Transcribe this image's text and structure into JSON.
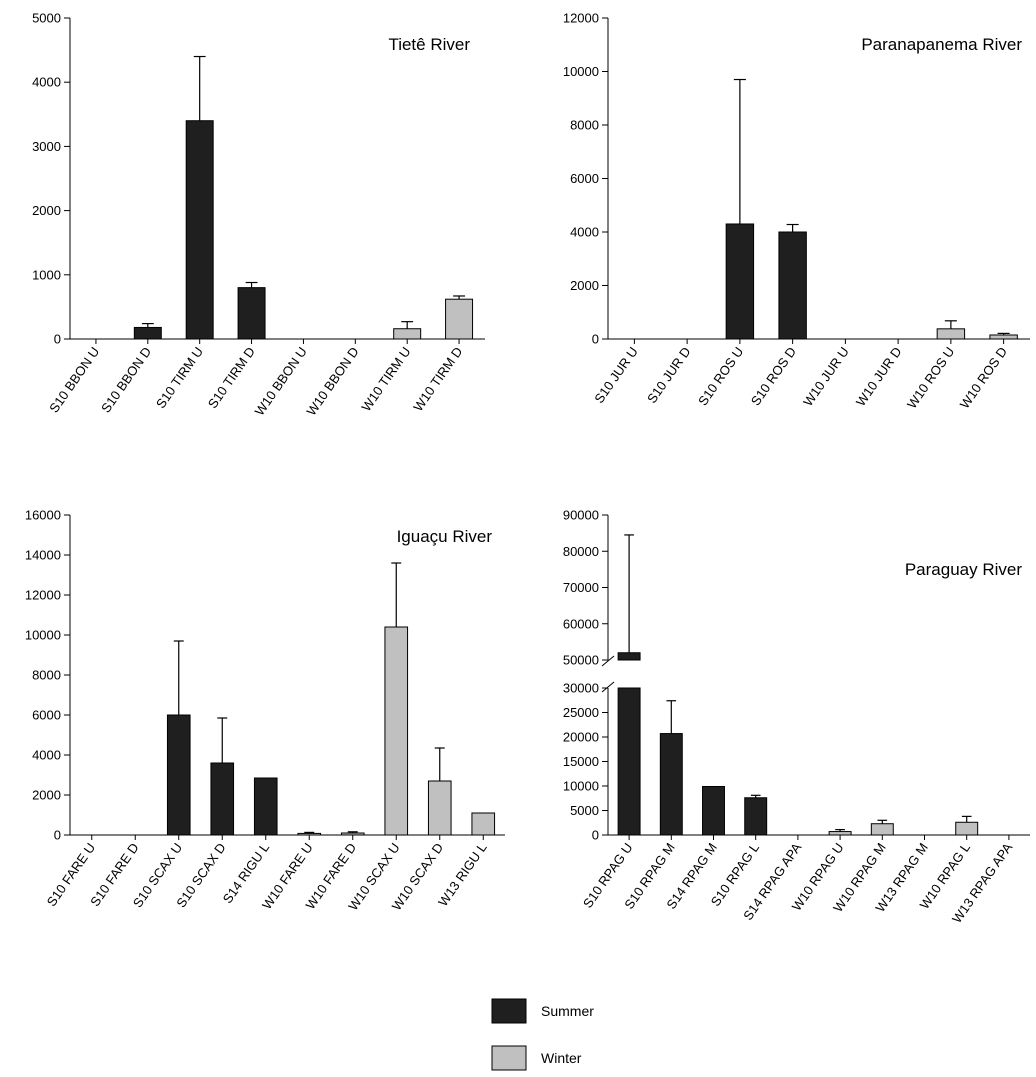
{
  "colors": {
    "summer": "#1f1f1f",
    "winter": "#c0c0c0",
    "axis": "#000000"
  },
  "legend": [
    {
      "key": "summer",
      "label": "Summer"
    },
    {
      "key": "winter",
      "label": "Winter"
    }
  ],
  "chart_data": [
    {
      "type": "bar",
      "title": "Tietê River",
      "xlabel": "",
      "ylabel": "",
      "ylim": [
        0,
        5000
      ],
      "yticks": [
        0,
        1000,
        2000,
        3000,
        4000,
        5000
      ],
      "categories": [
        "S10 BBON U",
        "S10 BBON D",
        "S10 TIRM U",
        "S10 TIRM D",
        "W10 BBON U",
        "W10 BBON D",
        "W10 TIRM U",
        "W10 TIRM D"
      ],
      "values": [
        0,
        180,
        3400,
        800,
        0,
        0,
        160,
        620
      ],
      "errors": [
        0,
        60,
        1000,
        80,
        0,
        0,
        110,
        50
      ],
      "season": [
        "summer",
        "summer",
        "summer",
        "summer",
        "winter",
        "winter",
        "winter",
        "winter"
      ]
    },
    {
      "type": "bar",
      "title": "Paranapanema River",
      "xlabel": "",
      "ylabel": "",
      "ylim": [
        0,
        12000
      ],
      "yticks": [
        0,
        2000,
        4000,
        6000,
        8000,
        10000,
        12000
      ],
      "categories": [
        "S10 JUR U",
        "S10 JUR D",
        "S10 ROS U",
        "S10 ROS D",
        "W10 JUR U",
        "W10 JUR D",
        "W10 ROS U",
        "W10 ROS D"
      ],
      "values": [
        0,
        0,
        4300,
        4000,
        0,
        0,
        380,
        150
      ],
      "errors": [
        0,
        0,
        5400,
        280,
        0,
        0,
        300,
        60
      ],
      "season": [
        "summer",
        "summer",
        "summer",
        "summer",
        "winter",
        "winter",
        "winter",
        "winter"
      ]
    },
    {
      "type": "bar",
      "title": "Iguaçu River",
      "xlabel": "",
      "ylabel": "",
      "ylim": [
        0,
        16000
      ],
      "yticks": [
        0,
        2000,
        4000,
        6000,
        8000,
        10000,
        12000,
        14000,
        16000
      ],
      "categories": [
        "S10 FARE U",
        "S10 FARE D",
        "S10 SCAX U",
        "S10 SCAX D",
        "S14 RIGU L",
        "W10 FARE U",
        "W10 FARE D",
        "W10 SCAX U",
        "W10 SCAX D",
        "W13 RIGU L"
      ],
      "values": [
        0,
        0,
        6000,
        3600,
        2850,
        80,
        100,
        10400,
        2700,
        1100
      ],
      "errors": [
        0,
        0,
        3700,
        2250,
        0,
        50,
        60,
        3200,
        1650,
        0
      ],
      "season": [
        "summer",
        "summer",
        "summer",
        "summer",
        "summer",
        "winter",
        "winter",
        "winter",
        "winter",
        "winter"
      ]
    },
    {
      "type": "bar",
      "title": "Paraguay River",
      "xlabel": "",
      "ylabel": "",
      "ylim": [
        0,
        90000
      ],
      "axis_break": [
        30000,
        50000
      ],
      "yticks": [
        0,
        5000,
        10000,
        15000,
        20000,
        25000,
        30000,
        50000,
        60000,
        70000,
        80000,
        90000
      ],
      "categories": [
        "S10 RPAG U",
        "S10 RPAG M",
        "S14 RPAG M",
        "S10 RPAG L",
        "S14 RPAG APA",
        "W10 RPAG U",
        "W10 RPAG M",
        "W13 RPAG M",
        "W10 RPAG L",
        "W13 RPAG APA"
      ],
      "values": [
        52000,
        20700,
        9900,
        7600,
        0,
        700,
        2300,
        0,
        2600,
        0
      ],
      "errors": [
        32500,
        6700,
        0,
        500,
        0,
        400,
        700,
        0,
        1200,
        0
      ],
      "season": [
        "summer",
        "summer",
        "summer",
        "summer",
        "summer",
        "winter",
        "winter",
        "winter",
        "winter",
        "winter"
      ]
    }
  ]
}
